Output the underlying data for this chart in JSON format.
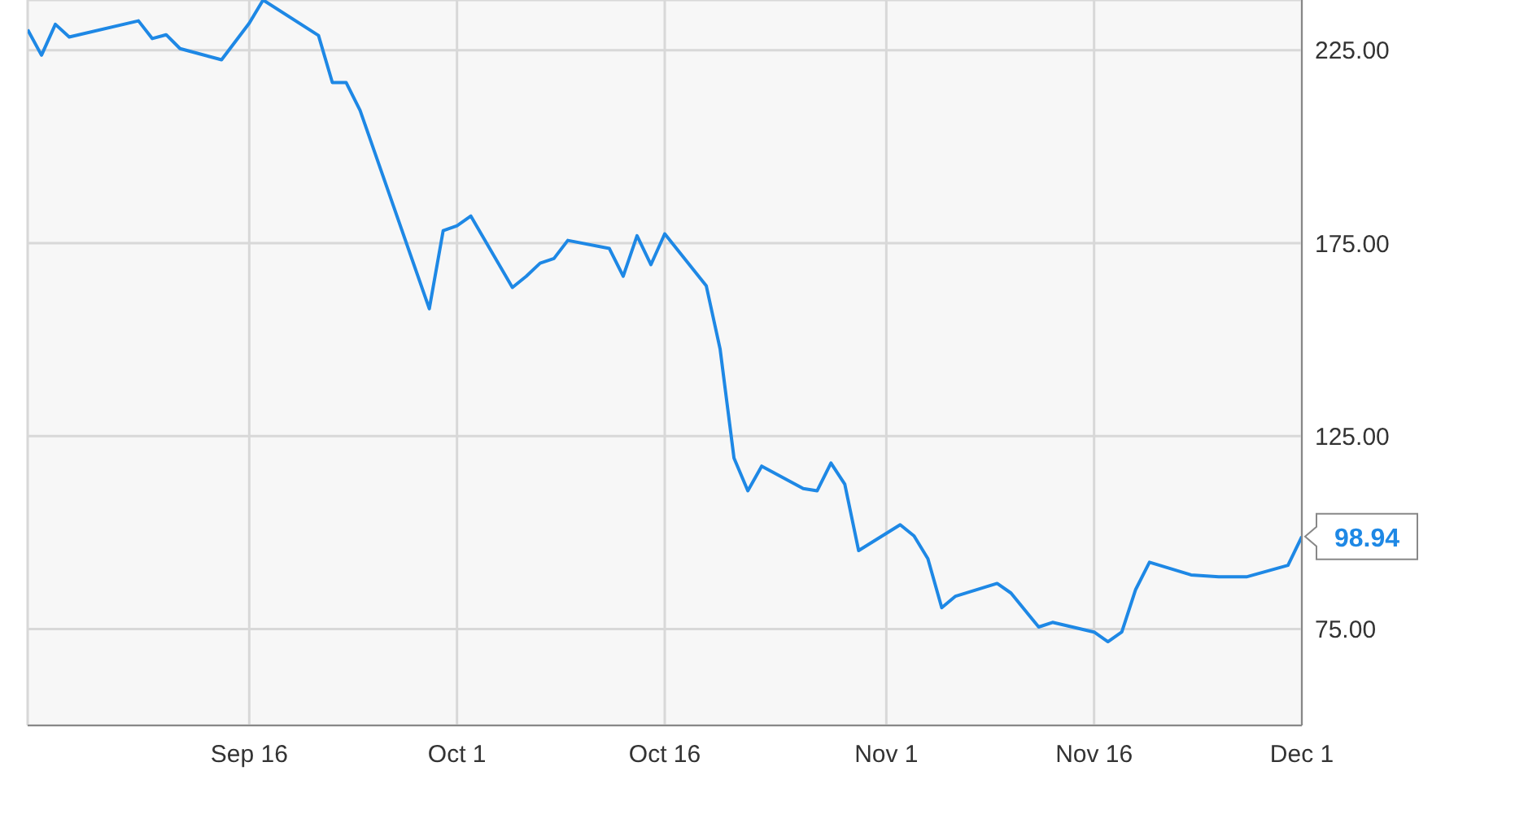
{
  "chart_data": {
    "type": "line",
    "x": [
      "--08-31",
      "--09-01",
      "--09-02",
      "--09-03",
      "--09-08",
      "--09-09",
      "--09-10",
      "--09-11",
      "--09-14",
      "--09-16",
      "--09-17",
      "--09-21",
      "--09-22",
      "--09-23",
      "--09-24",
      "--09-29",
      "--09-30",
      "--10-01",
      "--10-02",
      "--10-05",
      "--10-06",
      "--10-07",
      "--10-08",
      "--10-09",
      "--10-12",
      "--10-13",
      "--10-14",
      "--10-15",
      "--10-16",
      "--10-19",
      "--10-20",
      "--10-21",
      "--10-22",
      "--10-23",
      "--10-26",
      "--10-27",
      "--10-28",
      "--10-29",
      "--10-30",
      "--11-02",
      "--11-03",
      "--11-04",
      "--11-05",
      "--11-06",
      "--11-09",
      "--11-10",
      "--11-12",
      "--11-13",
      "--11-16",
      "--11-17",
      "--11-18",
      "--11-19",
      "--11-20",
      "--11-23",
      "--11-25",
      "--11-27",
      "--11-30",
      "--12-01"
    ],
    "series": [
      {
        "color": "#1e88e5",
        "values": [
          230.3,
          223.7,
          231.7,
          228.4,
          232.6,
          228,
          229,
          225.4,
          222.5,
          232,
          238,
          228.8,
          216.6,
          216.6,
          209.4,
          158,
          178.2,
          179.5,
          182,
          163.5,
          166.4,
          169.8,
          171,
          175.7,
          173.6,
          166.4,
          176.9,
          169.4,
          177.4,
          163.9,
          147.5,
          119.3,
          110.8,
          117.2,
          111.4,
          110.8,
          118,
          112.5,
          95.3,
          102,
          99.1,
          93.2,
          80.5,
          83.5,
          86.8,
          84.3,
          75.5,
          76.7,
          74.2,
          71.7,
          74.2,
          85.2,
          92.3,
          89,
          88.5,
          88.5,
          91.5,
          98.94
        ]
      }
    ],
    "xlim": [
      "--08-31",
      "--12-01"
    ],
    "xticks": [
      {
        "value": "--09-16",
        "label": "Sep 16"
      },
      {
        "value": "--10-01",
        "label": "Oct 1"
      },
      {
        "value": "--10-16",
        "label": "Oct 16"
      },
      {
        "value": "--11-01",
        "label": "Nov 1"
      },
      {
        "value": "--11-16",
        "label": "Nov 16"
      },
      {
        "value": "--12-01",
        "label": "Dec 1"
      }
    ],
    "ylim": [
      50,
      238
    ],
    "yticks": [
      {
        "value": 75,
        "label": "75.00"
      },
      {
        "value": 125,
        "label": "125.00"
      },
      {
        "value": 175,
        "label": "175.00"
      },
      {
        "value": 225,
        "label": "225.00"
      }
    ],
    "annotations": [
      {
        "text": "98.94",
        "x": "--12-01",
        "y": 98.94
      }
    ],
    "grid": true,
    "legend": false,
    "marker": "none",
    "line_style": "solid"
  }
}
